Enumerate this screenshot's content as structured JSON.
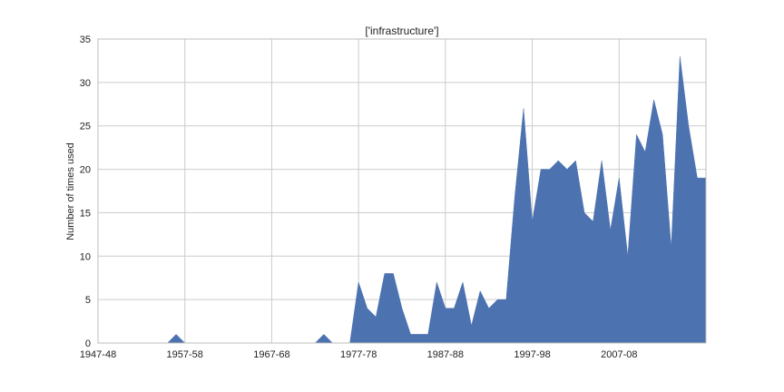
{
  "chart_data": {
    "type": "area",
    "title": "['infrastructure']",
    "xlabel": "",
    "ylabel": "Number of times used",
    "ylim": [
      0,
      35
    ],
    "yticks": [
      0,
      5,
      10,
      15,
      20,
      25,
      30,
      35
    ],
    "xtick_labels": [
      "1947-48",
      "1957-58",
      "1967-68",
      "1977-78",
      "1987-88",
      "1997-98",
      "2007-08"
    ],
    "grid": true,
    "color": "#4c72b0",
    "x": [
      "1947-48",
      "1948-49",
      "1949-50",
      "1950-51",
      "1951-52",
      "1952-53",
      "1953-54",
      "1954-55",
      "1955-56",
      "1956-57",
      "1957-58",
      "1958-59",
      "1959-60",
      "1960-61",
      "1961-62",
      "1962-63",
      "1963-64",
      "1964-65",
      "1965-66",
      "1966-67",
      "1967-68",
      "1968-69",
      "1969-70",
      "1970-71",
      "1971-72",
      "1972-73",
      "1973-74",
      "1974-75",
      "1975-76",
      "1976-77",
      "1977-78",
      "1978-79",
      "1979-80",
      "1980-81",
      "1981-82",
      "1982-83",
      "1983-84",
      "1984-85",
      "1985-86",
      "1986-87",
      "1987-88",
      "1988-89",
      "1989-90",
      "1990-91",
      "1991-92",
      "1992-93",
      "1993-94",
      "1994-95",
      "1995-96",
      "1996-97",
      "1997-98",
      "1998-99",
      "1999-00",
      "2000-01",
      "2001-02",
      "2002-03",
      "2003-04",
      "2004-05",
      "2005-06",
      "2006-07",
      "2007-08",
      "2008-09",
      "2009-10",
      "2010-11",
      "2011-12",
      "2012-13",
      "2013-14",
      "2014-15",
      "2015-16",
      "2016-17",
      "2017-18"
    ],
    "values": [
      0,
      0,
      0,
      0,
      0,
      0,
      0,
      0,
      0,
      1,
      0,
      0,
      0,
      0,
      0,
      0,
      0,
      0,
      0,
      0,
      0,
      0,
      0,
      0,
      0,
      0,
      1,
      0,
      0,
      0,
      7,
      4,
      3,
      8,
      8,
      4,
      1,
      1,
      1,
      7,
      4,
      4,
      7,
      2,
      6,
      4,
      5,
      5,
      17,
      27,
      14,
      20,
      20,
      21,
      20,
      21,
      15,
      14,
      21,
      13,
      19,
      10,
      24,
      22,
      28,
      24,
      11,
      33,
      25,
      19,
      19
    ]
  }
}
